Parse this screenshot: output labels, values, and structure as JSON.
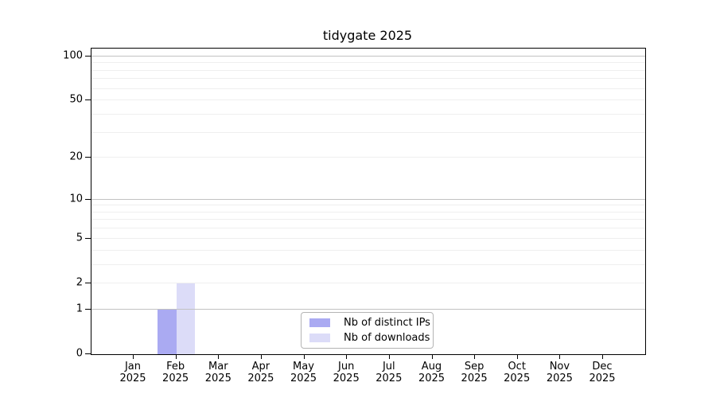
{
  "chart_data": {
    "type": "bar",
    "title": "tidygate 2025",
    "x_ticks": [
      {
        "month": "Jan",
        "year": "2025"
      },
      {
        "month": "Feb",
        "year": "2025"
      },
      {
        "month": "Mar",
        "year": "2025"
      },
      {
        "month": "Apr",
        "year": "2025"
      },
      {
        "month": "May",
        "year": "2025"
      },
      {
        "month": "Jun",
        "year": "2025"
      },
      {
        "month": "Jul",
        "year": "2025"
      },
      {
        "month": "Aug",
        "year": "2025"
      },
      {
        "month": "Sep",
        "year": "2025"
      },
      {
        "month": "Oct",
        "year": "2025"
      },
      {
        "month": "Nov",
        "year": "2025"
      },
      {
        "month": "Dec",
        "year": "2025"
      }
    ],
    "series": [
      {
        "name": "Nb of distinct IPs",
        "color": "#aaaaf2",
        "values": [
          0,
          1,
          0,
          0,
          0,
          0,
          0,
          0,
          0,
          0,
          0,
          0
        ]
      },
      {
        "name": "Nb of downloads",
        "color": "#dcdcf8",
        "values": [
          0,
          2,
          0,
          0,
          0,
          0,
          0,
          0,
          0,
          0,
          0,
          0
        ]
      }
    ],
    "y_axis": {
      "scale": "log10(1+x)",
      "ylim": [
        0,
        113
      ],
      "ticks": [
        {
          "value": 0,
          "label": "0"
        },
        {
          "value": 1,
          "label": "1"
        },
        {
          "value": 2,
          "label": "2"
        },
        {
          "value": 5,
          "label": "5"
        },
        {
          "value": 10,
          "label": "10"
        },
        {
          "value": 20,
          "label": "20"
        },
        {
          "value": 50,
          "label": "50"
        },
        {
          "value": 100,
          "label": "100"
        }
      ],
      "major_gridlines": [
        1,
        10,
        100
      ],
      "minor_gridlines": [
        2,
        3,
        4,
        5,
        6,
        7,
        8,
        9,
        20,
        30,
        40,
        50,
        60,
        70,
        80,
        90
      ]
    },
    "legend": {
      "position": "lower center"
    },
    "grid": "horizontal-only",
    "colors": {
      "major_grid": "#c2c2c2",
      "minor_grid": "#efefef",
      "spine": "#000000"
    }
  }
}
